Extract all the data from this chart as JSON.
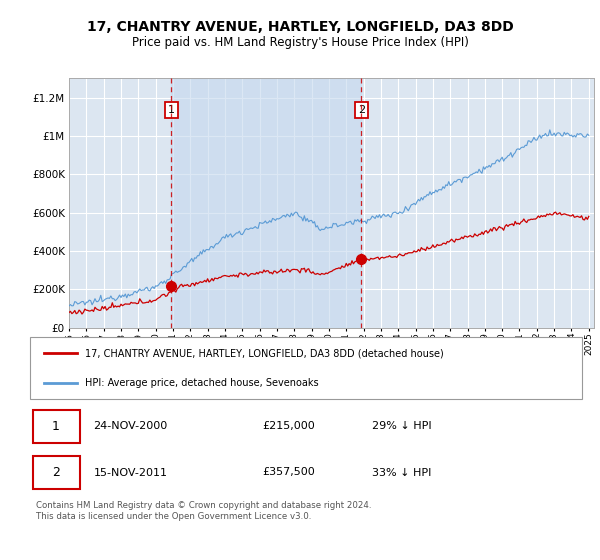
{
  "title": "17, CHANTRY AVENUE, HARTLEY, LONGFIELD, DA3 8DD",
  "subtitle": "Price paid vs. HM Land Registry's House Price Index (HPI)",
  "ytick_values": [
    0,
    200000,
    400000,
    600000,
    800000,
    1000000,
    1200000
  ],
  "ylim": [
    0,
    1300000
  ],
  "xlim_start": 1995.0,
  "xlim_end": 2025.3,
  "sale1": {
    "date_num": 2000.9,
    "price": 215000,
    "label": "1",
    "date_str": "24-NOV-2000",
    "pct": "29% ↓ HPI"
  },
  "sale2": {
    "date_num": 2011.88,
    "price": 357500,
    "label": "2",
    "date_str": "15-NOV-2011",
    "pct": "33% ↓ HPI"
  },
  "vline_color": "#cc0000",
  "hpi_color": "#5b9bd5",
  "price_color": "#cc0000",
  "plot_bg_color": "#dce6f1",
  "shade_color": "#cddcee",
  "grid_color": "#ffffff",
  "legend_label_red": "17, CHANTRY AVENUE, HARTLEY, LONGFIELD, DA3 8DD (detached house)",
  "legend_label_blue": "HPI: Average price, detached house, Sevenoaks",
  "footer": "Contains HM Land Registry data © Crown copyright and database right 2024.\nThis data is licensed under the Open Government Licence v3.0."
}
